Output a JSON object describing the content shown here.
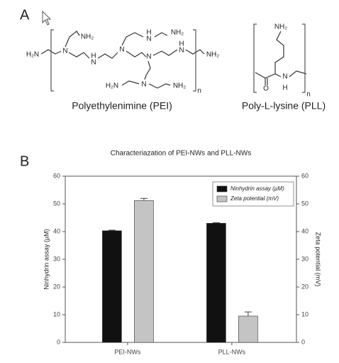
{
  "panel_a": {
    "label": "A",
    "pei": {
      "name": "Polyethylenimine (PEI)",
      "atoms": [
        "H₂N",
        "N",
        "NH₂",
        "H",
        "N",
        "N",
        "H",
        "N",
        "NH₂",
        "N",
        "H",
        "N",
        "NH₂",
        "H₂N",
        "N",
        "NH₂",
        "n"
      ]
    },
    "pll": {
      "name": "Poly-L-lysine (PLL)",
      "atoms": [
        "NH₂",
        "O",
        "N",
        "H",
        "n"
      ]
    }
  },
  "panel_b": {
    "label": "B"
  },
  "chart_data": {
    "type": "bar",
    "title": "Characteriazation of PEI-NWs and PLL-NWs",
    "ylabel": "Ninhydrin assay (µM)",
    "y2label": "Zeta potential (mV)",
    "categories": [
      "PEI-NWs",
      "PLL-NWs"
    ],
    "series": [
      {
        "name": "Ninhydrin assay (µM)",
        "color": "#111111",
        "values": [
          40.3,
          43
        ],
        "errors": [
          0.2,
          0.2
        ]
      },
      {
        "name": "Zeta potential (mV)",
        "color": "#c4c4c4",
        "values": [
          51.2,
          9.5
        ],
        "errors": [
          0.8,
          1.5
        ],
        "axis": "y2"
      }
    ],
    "ylim": [
      0,
      60
    ],
    "yticks": [
      0,
      10,
      20,
      30,
      40,
      50,
      60
    ],
    "y2lim": [
      0,
      60
    ],
    "y2ticks": [
      0,
      10,
      20,
      30,
      40,
      50,
      60
    ],
    "legend": "upper right",
    "grid": false
  }
}
